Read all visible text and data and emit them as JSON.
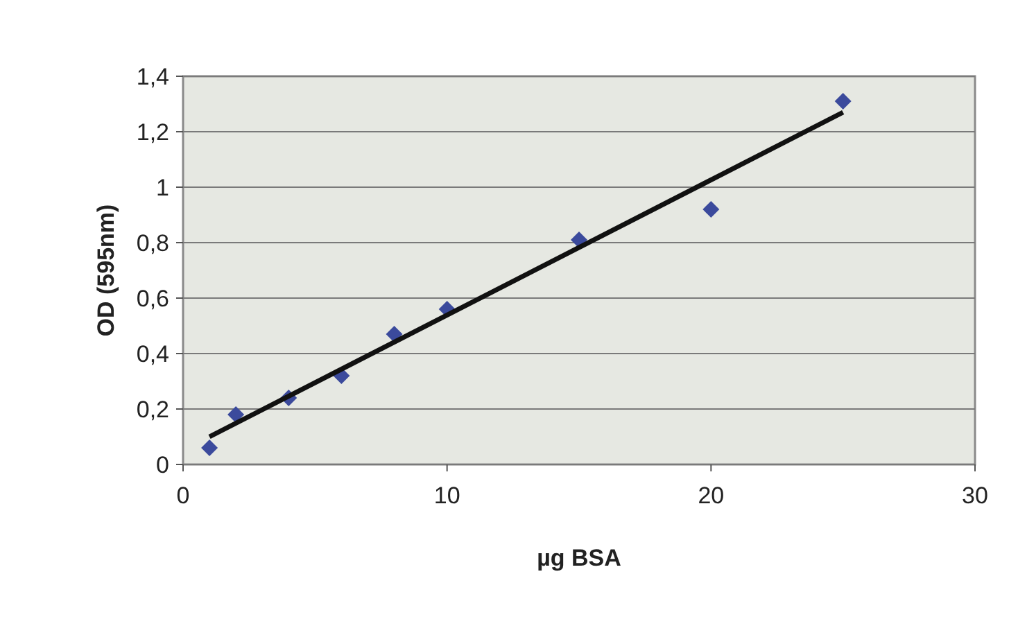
{
  "chart_data": {
    "type": "scatter",
    "xlabel": "µg BSA",
    "ylabel": "OD (595nm)",
    "x": [
      1,
      2,
      4,
      6,
      8,
      10,
      15,
      20,
      25
    ],
    "series": [
      {
        "color": "#3b4a9c",
        "marker": "diamond",
        "values": [
          0.06,
          0.18,
          0.24,
          0.32,
          0.47,
          0.56,
          0.81,
          0.92,
          1.31
        ]
      },
      {
        "type": "line",
        "color": "#111111",
        "marker": "none",
        "x": [
          1,
          25
        ],
        "values": [
          0.1,
          1.27
        ]
      }
    ],
    "xlim": [
      0,
      30
    ],
    "xticks": [
      0,
      10,
      20,
      30
    ],
    "ylim": [
      0,
      1.4
    ],
    "yticks": [
      {
        "value": 0,
        "label": "0"
      },
      {
        "value": 0.2,
        "label": "0,2"
      },
      {
        "value": 0.4,
        "label": "0,4"
      },
      {
        "value": 0.6,
        "label": "0,6"
      },
      {
        "value": 0.8,
        "label": "0,8"
      },
      {
        "value": 1,
        "label": "1"
      },
      {
        "value": 1.2,
        "label": "1,2"
      },
      {
        "value": 1.4,
        "label": "1,4"
      }
    ],
    "grid": "y"
  }
}
